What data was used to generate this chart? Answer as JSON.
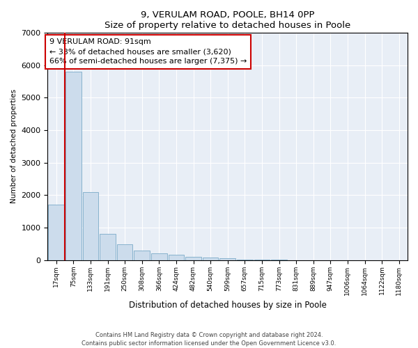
{
  "title": "9, VERULAM ROAD, POOLE, BH14 0PP",
  "subtitle": "Size of property relative to detached houses in Poole",
  "xlabel": "Distribution of detached houses by size in Poole",
  "ylabel": "Number of detached properties",
  "bar_labels": [
    "17sqm",
    "75sqm",
    "133sqm",
    "191sqm",
    "250sqm",
    "308sqm",
    "366sqm",
    "424sqm",
    "482sqm",
    "540sqm",
    "599sqm",
    "657sqm",
    "715sqm",
    "773sqm",
    "831sqm",
    "889sqm",
    "947sqm",
    "1006sqm",
    "1064sqm",
    "1122sqm",
    "1180sqm"
  ],
  "bar_values": [
    1700,
    5800,
    2100,
    820,
    490,
    300,
    210,
    160,
    110,
    75,
    55,
    30,
    18,
    10,
    7,
    4,
    3,
    2,
    2,
    1,
    1
  ],
  "bar_color": "#ccdcec",
  "bar_edge_color": "#7aaac8",
  "ylim": [
    0,
    7000
  ],
  "yticks": [
    0,
    1000,
    2000,
    3000,
    4000,
    5000,
    6000,
    7000
  ],
  "vline_x": 0.5,
  "vline_color": "#cc0000",
  "annotation_text": "9 VERULAM ROAD: 91sqm\n← 33% of detached houses are smaller (3,620)\n66% of semi-detached houses are larger (7,375) →",
  "annotation_box_color": "#ffffff",
  "annotation_box_edge": "#cc0000",
  "footer_line1": "Contains HM Land Registry data © Crown copyright and database right 2024.",
  "footer_line2": "Contains public sector information licensed under the Open Government Licence v3.0.",
  "plot_bg_color": "#e8eef6"
}
